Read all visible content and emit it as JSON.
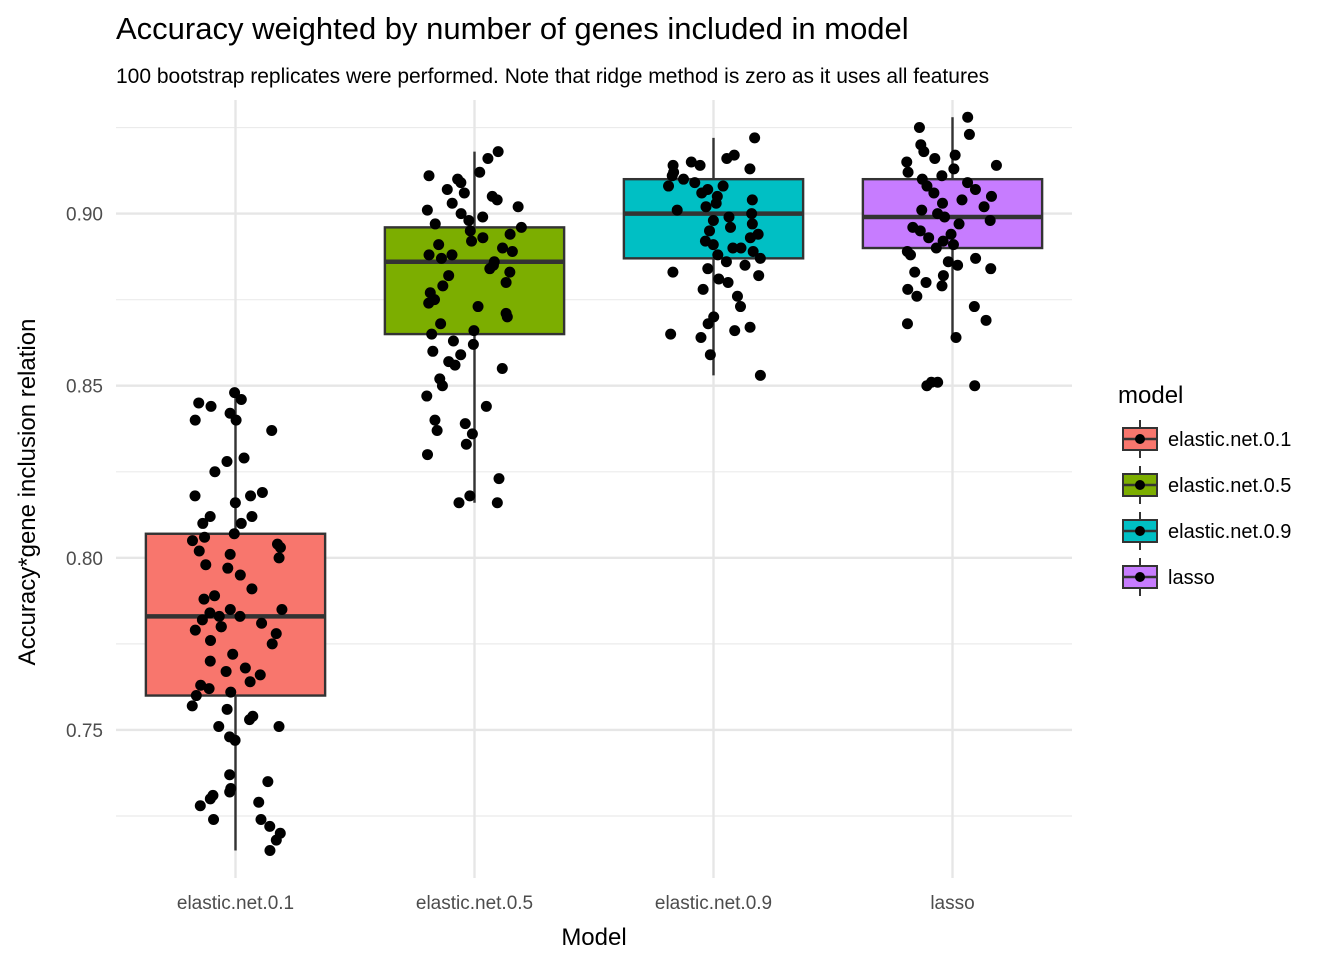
{
  "chart_data": {
    "type": "box",
    "title": "Accuracy weighted by number of genes included in model",
    "subtitle": "100 bootstrap replicates were performed. Note that ridge method is zero as it uses all features",
    "xlabel": "Model",
    "ylabel": "Accuracy*gene inclusion relation",
    "categories": [
      "elastic.net.0.1",
      "elastic.net.0.5",
      "elastic.net.0.9",
      "lasso"
    ],
    "yticks": [
      "0.75",
      "0.80",
      "0.85",
      "0.90"
    ],
    "ylim": [
      0.707,
      0.933
    ],
    "grid": true,
    "legend": {
      "title": "model",
      "placement": "right",
      "entries": [
        "elastic.net.0.1",
        "elastic.net.0.5",
        "elastic.net.0.9",
        "lasso"
      ]
    },
    "colors": {
      "elastic.net.0.1": "#F8766D",
      "elastic.net.0.5": "#7CAE00",
      "elastic.net.0.9": "#00BFC4",
      "lasso": "#C77CFF"
    },
    "series": [
      {
        "name": "elastic.net.0.1",
        "box": {
          "min": 0.715,
          "q1": 0.76,
          "median": 0.783,
          "q3": 0.807,
          "max": 0.848
        },
        "points": [
          0.848,
          0.846,
          0.845,
          0.844,
          0.842,
          0.84,
          0.84,
          0.837,
          0.829,
          0.828,
          0.825,
          0.819,
          0.818,
          0.818,
          0.816,
          0.812,
          0.812,
          0.81,
          0.81,
          0.807,
          0.806,
          0.805,
          0.804,
          0.803,
          0.802,
          0.801,
          0.8,
          0.798,
          0.797,
          0.795,
          0.791,
          0.789,
          0.788,
          0.785,
          0.785,
          0.784,
          0.783,
          0.783,
          0.782,
          0.781,
          0.78,
          0.78,
          0.779,
          0.778,
          0.776,
          0.775,
          0.772,
          0.77,
          0.768,
          0.767,
          0.766,
          0.764,
          0.763,
          0.762,
          0.761,
          0.76,
          0.757,
          0.756,
          0.754,
          0.753,
          0.751,
          0.751,
          0.748,
          0.747,
          0.737,
          0.735,
          0.733,
          0.732,
          0.731,
          0.73,
          0.729,
          0.728,
          0.724,
          0.724,
          0.722,
          0.72,
          0.718,
          0.715
        ]
      },
      {
        "name": "elastic.net.0.5",
        "box": {
          "min": 0.816,
          "q1": 0.865,
          "median": 0.886,
          "q3": 0.896,
          "max": 0.918
        },
        "points": [
          0.918,
          0.916,
          0.912,
          0.911,
          0.91,
          0.909,
          0.907,
          0.906,
          0.905,
          0.904,
          0.903,
          0.902,
          0.901,
          0.9,
          0.899,
          0.898,
          0.897,
          0.896,
          0.895,
          0.894,
          0.893,
          0.892,
          0.891,
          0.89,
          0.889,
          0.888,
          0.888,
          0.887,
          0.886,
          0.885,
          0.884,
          0.883,
          0.882,
          0.88,
          0.879,
          0.877,
          0.875,
          0.874,
          0.873,
          0.871,
          0.87,
          0.868,
          0.866,
          0.865,
          0.863,
          0.862,
          0.86,
          0.859,
          0.857,
          0.856,
          0.855,
          0.852,
          0.85,
          0.847,
          0.844,
          0.84,
          0.839,
          0.837,
          0.836,
          0.833,
          0.83,
          0.823,
          0.818,
          0.816,
          0.816
        ]
      },
      {
        "name": "elastic.net.0.9",
        "box": {
          "min": 0.853,
          "q1": 0.887,
          "median": 0.9,
          "q3": 0.91,
          "max": 0.922
        },
        "points": [
          0.922,
          0.917,
          0.916,
          0.915,
          0.914,
          0.914,
          0.913,
          0.912,
          0.911,
          0.91,
          0.909,
          0.908,
          0.908,
          0.907,
          0.906,
          0.905,
          0.904,
          0.903,
          0.902,
          0.901,
          0.9,
          0.899,
          0.898,
          0.897,
          0.896,
          0.895,
          0.894,
          0.893,
          0.892,
          0.891,
          0.89,
          0.89,
          0.889,
          0.888,
          0.887,
          0.886,
          0.885,
          0.884,
          0.883,
          0.882,
          0.881,
          0.88,
          0.878,
          0.876,
          0.873,
          0.87,
          0.868,
          0.867,
          0.866,
          0.865,
          0.864,
          0.859,
          0.853
        ]
      },
      {
        "name": "lasso",
        "box": {
          "min": 0.864,
          "q1": 0.89,
          "median": 0.899,
          "q3": 0.91,
          "max": 0.928
        },
        "points": [
          0.928,
          0.925,
          0.923,
          0.92,
          0.918,
          0.917,
          0.916,
          0.915,
          0.914,
          0.913,
          0.912,
          0.911,
          0.91,
          0.909,
          0.908,
          0.907,
          0.906,
          0.905,
          0.904,
          0.903,
          0.902,
          0.901,
          0.9,
          0.899,
          0.898,
          0.897,
          0.896,
          0.895,
          0.894,
          0.893,
          0.892,
          0.891,
          0.89,
          0.889,
          0.888,
          0.887,
          0.886,
          0.885,
          0.884,
          0.883,
          0.882,
          0.88,
          0.879,
          0.878,
          0.876,
          0.873,
          0.869,
          0.868,
          0.864,
          0.851,
          0.851,
          0.85,
          0.85
        ]
      }
    ]
  }
}
